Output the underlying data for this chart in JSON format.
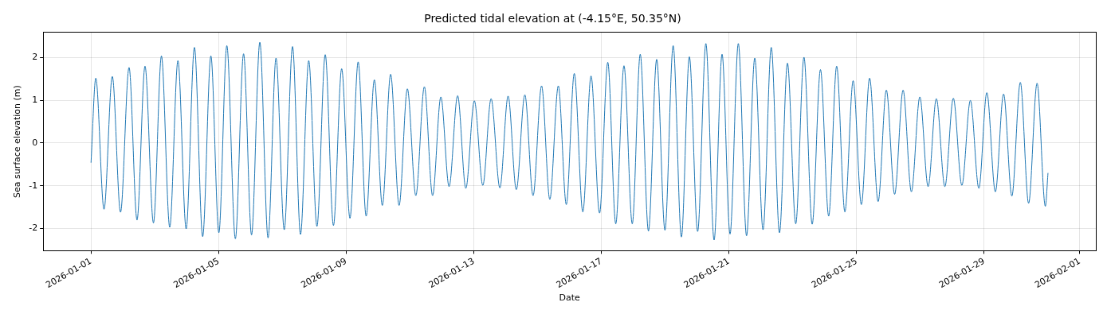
{
  "chart_data": {
    "type": "line",
    "title": "Predicted tidal elevation at (-4.15°E, 50.35°N)",
    "xlabel": "Date",
    "ylabel": "Sea surface elevation (m)",
    "xlim": [
      "2025-12-30T12:00",
      "2026-02-01T12:00"
    ],
    "xticks": [
      "2026-01-01",
      "2026-01-05",
      "2026-01-09",
      "2026-01-13",
      "2026-01-17",
      "2026-01-21",
      "2026-01-25",
      "2026-01-29",
      "2026-02-01"
    ],
    "ylim": [
      -2.52,
      2.59
    ],
    "yticks": [
      -2,
      -1,
      0,
      1,
      2
    ],
    "grid": true,
    "legend": false,
    "marker": "none",
    "line_style": "solid",
    "series": [
      {
        "color": "#1f77b4",
        "x": [
          "2026-01-01T00:00",
          "2026-01-01T03:36",
          "2026-01-01T09:47",
          "2026-01-01T16:01",
          "2026-01-01T22:12",
          "2026-01-02T04:37",
          "2026-01-02T10:37",
          "2026-01-02T16:37",
          "2026-01-02T22:59",
          "2026-01-03T04:59",
          "2026-01-03T11:13",
          "2026-01-03T17:24",
          "2026-01-03T23:35",
          "2026-01-04T05:49",
          "2026-01-04T12:00",
          "2026-01-04T18:11",
          "2026-01-05T00:11",
          "2026-01-05T06:11",
          "2026-01-05T12:36",
          "2026-01-05T18:47",
          "2026-01-06T00:47",
          "2026-01-06T07:01",
          "2026-01-06T13:12",
          "2026-01-06T19:12",
          "2026-01-07T01:23",
          "2026-01-07T07:37",
          "2026-01-07T13:37",
          "2026-01-07T19:48",
          "2026-01-08T01:59",
          "2026-01-08T08:13",
          "2026-01-08T14:24",
          "2026-01-08T20:35",
          "2026-01-09T02:49",
          "2026-01-09T09:00",
          "2026-01-09T15:00",
          "2026-01-09T21:11",
          "2026-01-10T03:11",
          "2026-01-10T09:25",
          "2026-01-10T15:47",
          "2026-01-10T22:01",
          "2026-01-11T04:23",
          "2026-01-11T10:48",
          "2026-01-11T16:59",
          "2026-01-11T23:13",
          "2026-01-12T05:24",
          "2026-01-12T11:49",
          "2026-01-12T18:00",
          "2026-01-13T00:25",
          "2026-01-13T06:47",
          "2026-01-13T13:01",
          "2026-01-13T19:37",
          "2026-01-14T01:48",
          "2026-01-14T07:59",
          "2026-01-14T14:24",
          "2026-01-14T20:35",
          "2026-01-15T03:00",
          "2026-01-15T09:11",
          "2026-01-15T15:36",
          "2026-01-15T21:36",
          "2026-01-16T03:36",
          "2026-01-16T10:01",
          "2026-01-16T16:12",
          "2026-01-16T22:37",
          "2026-01-17T04:48",
          "2026-01-17T10:48",
          "2026-01-17T16:59",
          "2026-01-17T23:13",
          "2026-01-18T05:13",
          "2026-01-18T11:24",
          "2026-01-18T17:35",
          "2026-01-18T23:49",
          "2026-01-19T06:00",
          "2026-01-19T12:11",
          "2026-01-19T18:11",
          "2026-01-20T00:25",
          "2026-01-20T06:36",
          "2026-01-20T12:47",
          "2026-01-20T18:47",
          "2026-01-21T00:47",
          "2026-01-21T07:01",
          "2026-01-21T13:12",
          "2026-01-21T19:23",
          "2026-01-22T01:37",
          "2026-01-22T07:48",
          "2026-01-22T13:59",
          "2026-01-22T19:59",
          "2026-01-23T02:13",
          "2026-01-23T08:24",
          "2026-01-23T14:35",
          "2026-01-23T20:49",
          "2026-01-24T03:00",
          "2026-01-24T09:00",
          "2026-01-24T15:11",
          "2026-01-24T21:25",
          "2026-01-25T03:36",
          "2026-01-25T09:47",
          "2026-01-25T16:12",
          "2026-01-25T22:23",
          "2026-01-26T04:37",
          "2026-01-26T10:59",
          "2026-01-26T17:13",
          "2026-01-26T23:35",
          "2026-01-27T05:49",
          "2026-01-27T12:00",
          "2026-01-27T18:25",
          "2026-01-28T00:47",
          "2026-01-28T07:12",
          "2026-01-28T13:37",
          "2026-01-28T19:59",
          "2026-01-29T01:59",
          "2026-01-29T08:24",
          "2026-01-29T14:35",
          "2026-01-29T20:49",
          "2026-01-30T03:11",
          "2026-01-30T09:25",
          "2026-01-30T15:47",
          "2026-01-30T22:01",
          "2026-01-31T00:00"
        ],
        "values": [
          -0.46,
          1.52,
          -1.55,
          1.56,
          -1.62,
          1.77,
          -1.8,
          1.8,
          -1.87,
          2.04,
          -1.97,
          1.93,
          -2.01,
          2.24,
          -2.19,
          2.04,
          -2.1,
          2.28,
          -2.24,
          2.09,
          -2.15,
          2.36,
          -2.22,
          1.99,
          -2.03,
          2.26,
          -2.14,
          1.93,
          -1.95,
          2.07,
          -1.93,
          1.74,
          -1.76,
          1.9,
          -1.71,
          1.48,
          -1.46,
          1.61,
          -1.46,
          1.27,
          -1.23,
          1.32,
          -1.23,
          1.08,
          -1.02,
          1.11,
          -1.06,
          0.99,
          -0.99,
          1.04,
          -1.05,
          1.1,
          -1.09,
          1.13,
          -1.23,
          1.34,
          -1.32,
          1.34,
          -1.44,
          1.63,
          -1.61,
          1.57,
          -1.64,
          1.89,
          -1.89,
          1.81,
          -1.89,
          2.08,
          -2.06,
          1.96,
          -2.04,
          2.28,
          -2.2,
          2.02,
          -2.07,
          2.33,
          -2.27,
          2.08,
          -2.13,
          2.33,
          -2.17,
          1.99,
          -2.03,
          2.24,
          -2.1,
          1.87,
          -1.89,
          2.01,
          -1.9,
          1.72,
          -1.71,
          1.8,
          -1.61,
          1.46,
          -1.44,
          1.52,
          -1.37,
          1.24,
          -1.2,
          1.24,
          -1.14,
          1.08,
          -1.02,
          1.04,
          -1.02,
          1.05,
          -0.99,
          1.0,
          -1.06,
          1.18,
          -1.14,
          1.15,
          -1.24,
          1.42,
          -1.41,
          1.4,
          -1.48,
          -0.7
        ]
      }
    ]
  }
}
